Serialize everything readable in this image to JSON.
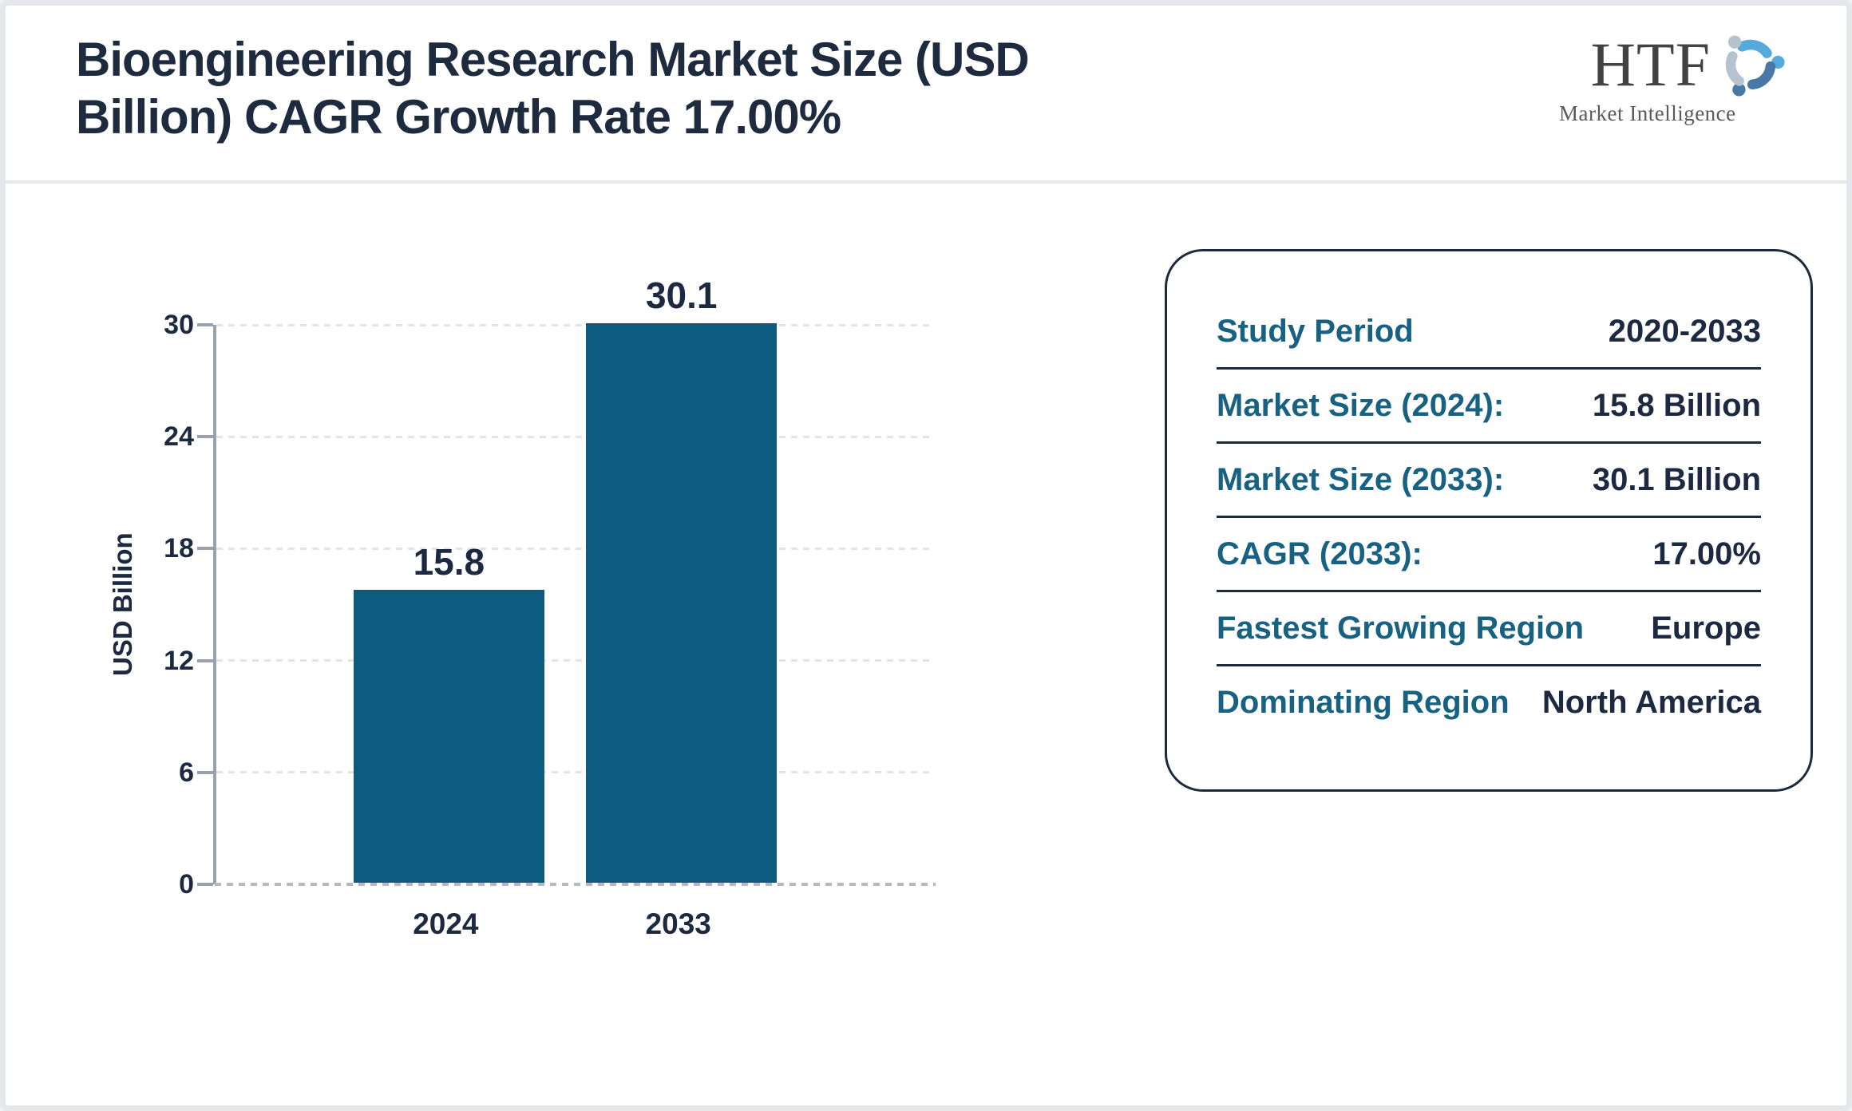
{
  "header": {
    "title_line1": "Bioengineering Research Market Size (USD",
    "title_line2": "Billion) CAGR Growth Rate 17.00%",
    "logo": {
      "abbr": "HTF",
      "subtitle": "Market Intelligence"
    }
  },
  "chart_data": {
    "type": "bar",
    "title": "Bioengineering Research Market Size (USD Billion) CAGR Growth Rate 17.00%",
    "categories": [
      "2024",
      "2033"
    ],
    "values": [
      15.8,
      30.1
    ],
    "data_labels": [
      "15.8",
      "30.1"
    ],
    "xlabel": "",
    "ylabel": "USD Billion",
    "ylim": [
      0,
      30
    ],
    "yticks": [
      0,
      6,
      12,
      18,
      24,
      30
    ],
    "grid": "horizontal-dotted",
    "legend": "none",
    "bar_color": "#0d5c80",
    "layout": {
      "bar_centers_frac": [
        0.327,
        0.654
      ],
      "bar_width_frac": 0.268
    }
  },
  "panel": {
    "rows": [
      {
        "label": "Study Period",
        "value": "2020-2033"
      },
      {
        "label": "Market Size (2024):",
        "value": "15.8 Billion"
      },
      {
        "label": "Market Size (2033):",
        "value": "30.1 Billion"
      },
      {
        "label": "CAGR (2033):",
        "value": "17.00%"
      },
      {
        "label": "Fastest Growing Region",
        "value": "Europe"
      },
      {
        "label": "Dominating Region",
        "value": "North America"
      }
    ]
  },
  "colors": {
    "bar": "#0d5c80",
    "title_text": "#1e2b3e",
    "panel_label": "#176183",
    "panel_value": "#1d2940",
    "panel_border": "#1c2a3c",
    "axis": "#99a2ac",
    "logo_blue_light": "#55aadc",
    "logo_blue_steel": "#4779a4",
    "logo_gray_blue": "#b6c3cf"
  }
}
